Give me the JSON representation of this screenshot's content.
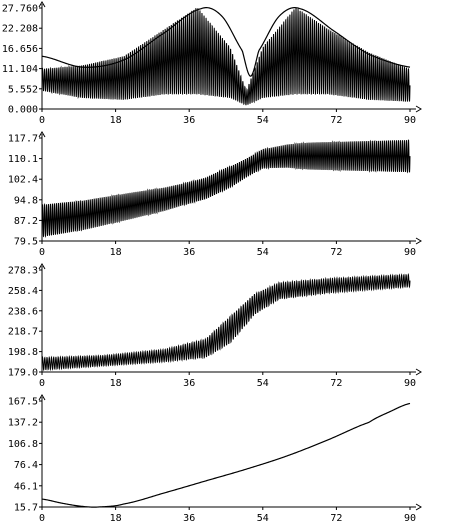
{
  "chart_data": [
    {
      "type": "line",
      "title": "",
      "xlim": [
        0,
        90
      ],
      "ylim": [
        0,
        27.76
      ],
      "x_ticks": [
        "0",
        "18",
        "36",
        "54",
        "72",
        "90"
      ],
      "y_ticks": [
        "0.000",
        "5.552",
        "11.104",
        "16.656",
        "22.208",
        "27.760"
      ],
      "series": [
        {
          "kind": "oscillation",
          "points": [
            [
              0,
              8
            ],
            [
              10,
              7.5
            ],
            [
              20,
              8.5
            ],
            [
              30,
              13
            ],
            [
              38,
              16
            ],
            [
              46,
              10
            ],
            [
              50,
              3
            ],
            [
              54,
              10
            ],
            [
              62,
              16
            ],
            [
              70,
              13
            ],
            [
              80,
              9
            ],
            [
              90,
              6.5
            ]
          ],
          "amp": [
            [
              0,
              3
            ],
            [
              10,
              4.5
            ],
            [
              20,
              6
            ],
            [
              30,
              9
            ],
            [
              38,
              12
            ],
            [
              46,
              7
            ],
            [
              50,
              2
            ],
            [
              54,
              7
            ],
            [
              62,
              12
            ],
            [
              70,
              9
            ],
            [
              80,
              6.5
            ],
            [
              90,
              4.5
            ]
          ],
          "cycles": 180
        },
        {
          "kind": "envelope",
          "points": [
            [
              0,
              14.5
            ],
            [
              10,
              11.5
            ],
            [
              20,
              13.5
            ],
            [
              30,
              21
            ],
            [
              39,
              27.6
            ],
            [
              44,
              25.5
            ],
            [
              49,
              16
            ],
            [
              51,
              9
            ],
            [
              53,
              16
            ],
            [
              58,
              25.5
            ],
            [
              63,
              27.6
            ],
            [
              72,
              21
            ],
            [
              80,
              15
            ],
            [
              90,
              11.5
            ]
          ]
        }
      ]
    },
    {
      "type": "line",
      "title": "",
      "xlim": [
        0,
        90
      ],
      "ylim": [
        79.5,
        117.7
      ],
      "x_ticks": [
        "0",
        "18",
        "36",
        "54",
        "72",
        "90"
      ],
      "y_ticks": [
        "79.5",
        "87.2",
        "94.8",
        "102.4",
        "110.1",
        "117.7"
      ],
      "series": [
        {
          "kind": "oscillation",
          "points": [
            [
              0,
              87
            ],
            [
              10,
              89
            ],
            [
              20,
              92
            ],
            [
              30,
              95
            ],
            [
              40,
              99
            ],
            [
              47,
              104
            ],
            [
              54,
              110
            ],
            [
              60,
              111
            ],
            [
              70,
              111
            ],
            [
              80,
              111
            ],
            [
              90,
              111
            ]
          ],
          "amp": [
            [
              0,
              6
            ],
            [
              20,
              5
            ],
            [
              35,
              4
            ],
            [
              45,
              4
            ],
            [
              50,
              3.5
            ],
            [
              54,
              3.5
            ],
            [
              65,
              5
            ],
            [
              90,
              6
            ]
          ],
          "cycles": 185
        }
      ]
    },
    {
      "type": "line",
      "title": "",
      "xlim": [
        0,
        90
      ],
      "ylim": [
        179.0,
        278.3
      ],
      "x_ticks": [
        "0",
        "18",
        "36",
        "54",
        "72",
        "90"
      ],
      "y_ticks": [
        "179.0",
        "198.8",
        "218.7",
        "238.6",
        "258.4",
        "278.3"
      ],
      "series": [
        {
          "kind": "oscillation",
          "points": [
            [
              0,
              187
            ],
            [
              15,
              190
            ],
            [
              30,
              195
            ],
            [
              40,
              202
            ],
            [
              46,
              220
            ],
            [
              52,
              245
            ],
            [
              58,
              258
            ],
            [
              70,
              263
            ],
            [
              90,
              268
            ]
          ],
          "amp": [
            [
              0,
              6
            ],
            [
              15,
              5
            ],
            [
              30,
              6
            ],
            [
              40,
              9
            ],
            [
              46,
              13
            ],
            [
              52,
              10
            ],
            [
              58,
              8
            ],
            [
              70,
              7
            ],
            [
              90,
              6
            ]
          ],
          "cycles": 165
        }
      ]
    },
    {
      "type": "line",
      "title": "",
      "xlim": [
        0,
        90
      ],
      "ylim": [
        15.7,
        167.5
      ],
      "x_ticks": [
        "0",
        "18",
        "36",
        "54",
        "72",
        "90"
      ],
      "y_ticks": [
        "15.7",
        "46.1",
        "76.4",
        "106.8",
        "137.2",
        "167.5"
      ],
      "series": [
        {
          "kind": "smooth",
          "points": [
            [
              0,
              27
            ],
            [
              5,
              21
            ],
            [
              10,
              16.5
            ],
            [
              14,
              15.8
            ],
            [
              20,
              20
            ],
            [
              30,
              36
            ],
            [
              40,
              53
            ],
            [
              50,
              70
            ],
            [
              60,
              89
            ],
            [
              70,
              112
            ],
            [
              80,
              137
            ],
            [
              85,
              152
            ],
            [
              90,
              164
            ]
          ]
        }
      ]
    }
  ]
}
